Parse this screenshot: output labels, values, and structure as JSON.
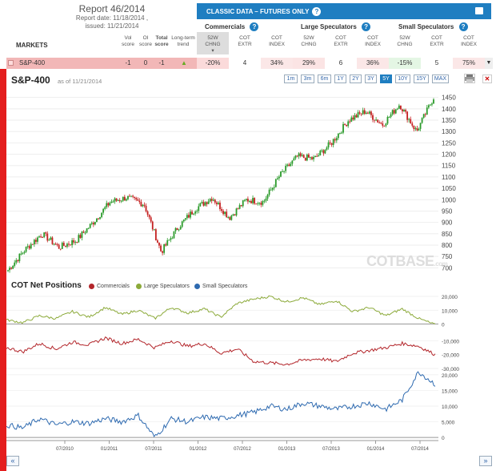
{
  "report": {
    "title": "Report 46/2014",
    "date": "Report date: 11/18/2014 ,",
    "issued": "issued: 11/21/2014"
  },
  "header": {
    "classic": "CLASSIC DATA – FUTURES ONLY",
    "groups": {
      "commercials": "Commercials",
      "large": "Large Speculators",
      "small": "Small Speculators"
    },
    "markets": "MARKETS",
    "cols": {
      "vol": [
        "Vol",
        "score"
      ],
      "oi": [
        "OI",
        "score"
      ],
      "total": [
        "Total",
        "score"
      ],
      "lt": [
        "Long-term",
        "trend"
      ],
      "chng": [
        "52W",
        "CHNG"
      ],
      "extr": [
        "COT",
        "EXTR"
      ],
      "index": [
        "COT",
        "INDEX"
      ]
    }
  },
  "row": {
    "market": "S&P-400",
    "vol": "-1",
    "oi": "0",
    "total": "-1",
    "c_chng": "-20%",
    "c_extr": "4",
    "c_index": "34%",
    "l_chng": "29%",
    "l_extr": "6",
    "l_index": "36%",
    "s_chng": "-15%",
    "s_extr": "5",
    "s_index": "75%"
  },
  "chart": {
    "title": "S&P-400",
    "asof": "as of 11/21/2014",
    "ranges": [
      "1m",
      "3m",
      "6m",
      "1Y",
      "2Y",
      "3Y",
      "5Y",
      "10Y",
      "15Y",
      "MAX"
    ],
    "active": "5Y",
    "watermark": "COTBASE.com"
  },
  "cot": {
    "title": "COT Net Positions",
    "legend": [
      "Commercials",
      "Large Speculators",
      "Small Speculators"
    ]
  },
  "colors": {
    "commercials": "#b3262b",
    "large": "#8caa3a",
    "small": "#2e6ab0",
    "up": "#2a9a2a",
    "down": "#c42020",
    "accent": "#1f7ec1"
  },
  "chart_data": [
    {
      "type": "candlestick",
      "title": "S&P-400",
      "x_ticks": [
        "07/2010",
        "01/2011",
        "07/2011",
        "01/2012",
        "07/2012",
        "01/2013",
        "07/2013",
        "01/2014",
        "07/2014"
      ],
      "y_ticks": [
        700,
        750,
        800,
        850,
        900,
        950,
        1000,
        1050,
        1100,
        1150,
        1200,
        1250,
        1300,
        1350,
        1400,
        1450
      ],
      "ylim": [
        680,
        1470
      ],
      "x": [
        "2009-12",
        "2010-03",
        "2010-05",
        "2010-07",
        "2010-09",
        "2010-12",
        "2011-03",
        "2011-05",
        "2011-07",
        "2011-08",
        "2011-10",
        "2011-12",
        "2012-03",
        "2012-06",
        "2012-09",
        "2012-11",
        "2013-01",
        "2013-03",
        "2013-06",
        "2013-09",
        "2013-12",
        "2014-03",
        "2014-04",
        "2014-07",
        "2014-10",
        "2014-11"
      ],
      "values": [
        690,
        780,
        850,
        790,
        820,
        900,
        990,
        1010,
        980,
        770,
        880,
        960,
        1010,
        920,
        1000,
        990,
        1110,
        1190,
        1180,
        1250,
        1350,
        1390,
        1330,
        1420,
        1300,
        1450
      ]
    },
    {
      "type": "line",
      "title": "COT Net Positions",
      "x_ticks": [
        "07/2010",
        "01/2011",
        "07/2011",
        "01/2012",
        "07/2012",
        "01/2013",
        "07/2013",
        "01/2014",
        "07/2014"
      ],
      "series": [
        {
          "name": "Large Speculators",
          "ylim": [
            -2000,
            20000
          ],
          "y_ticks": [
            0,
            10000,
            20000
          ],
          "values": [
            3000,
            1000,
            6000,
            4000,
            9000,
            5000,
            12000,
            7000,
            10000,
            4000,
            12000,
            8000,
            11000,
            5000,
            15000,
            18000,
            20000,
            16000,
            19000,
            14000,
            17000,
            9000,
            12000,
            6000,
            11000,
            4000,
            -500
          ]
        },
        {
          "name": "Commercials",
          "ylim": [
            -30000,
            0
          ],
          "y_ticks": [
            -10000,
            -20000,
            -30000
          ],
          "values": [
            -15000,
            -18000,
            -12000,
            -16000,
            -11000,
            -13000,
            -8000,
            -12000,
            -9000,
            -15000,
            -10000,
            -14000,
            -12000,
            -19000,
            -16000,
            -25000,
            -26000,
            -27000,
            -24000,
            -23000,
            -25000,
            -19000,
            -17000,
            -15000,
            -12000,
            -14000,
            -20000
          ]
        },
        {
          "name": "Small Speculators",
          "ylim": [
            -1000,
            21000
          ],
          "y_ticks": [
            0,
            5000,
            10000,
            15000,
            20000
          ],
          "values": [
            4000,
            3000,
            6000,
            4000,
            5000,
            4500,
            6000,
            5000,
            7000,
            0,
            6000,
            5000,
            6500,
            6000,
            7000,
            8000,
            10000,
            9000,
            11000,
            10000,
            9000,
            10000,
            11000,
            9000,
            12000,
            21000,
            17000
          ]
        }
      ]
    }
  ]
}
